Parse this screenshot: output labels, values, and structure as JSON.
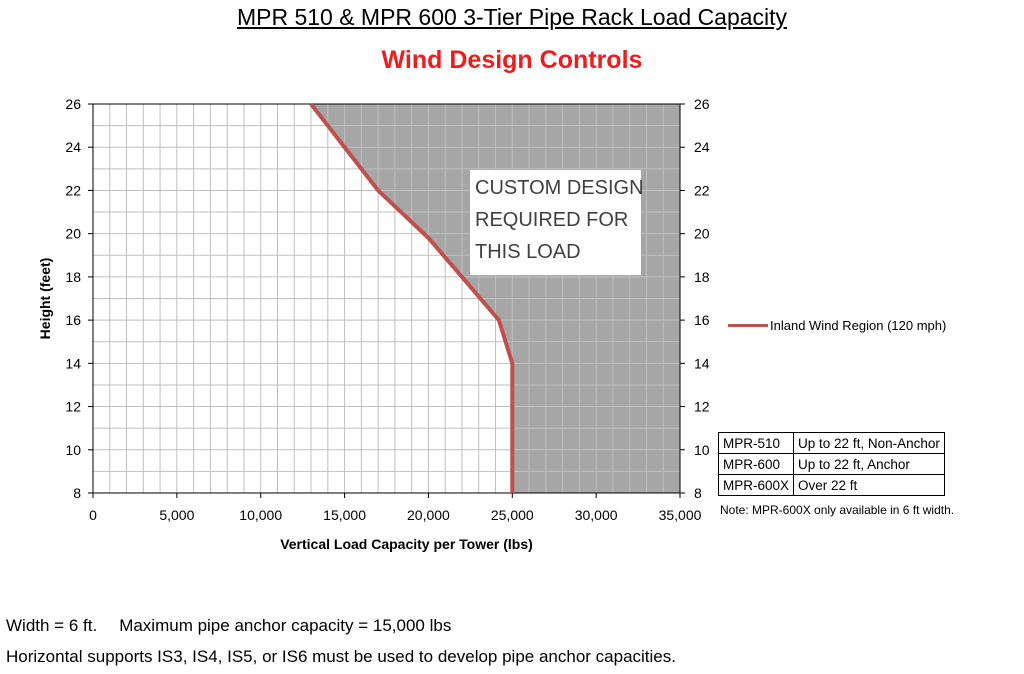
{
  "header": {
    "title": "MPR 510 & MPR 600  3-Tier Pipe Rack Load Capacity",
    "subtitle": "Wind Design Controls"
  },
  "chart_data": {
    "type": "line",
    "title": "MPR 510 & MPR 600  3-Tier Pipe Rack Load Capacity",
    "subtitle": "Wind Design Controls",
    "xlabel": "Vertical Load Capacity per Tower (lbs)",
    "ylabel": "Height (feet)",
    "xlim": [
      0,
      35000
    ],
    "ylim": [
      8,
      26
    ],
    "x_ticks": [
      "0",
      "5,000",
      "10,000",
      "15,000",
      "20,000",
      "25,000",
      "30,000",
      "35,000"
    ],
    "y_ticks": [
      "8",
      "10",
      "12",
      "14",
      "16",
      "18",
      "20",
      "22",
      "24",
      "26"
    ],
    "series": [
      {
        "name": "Inland Wind Region (120 mph)",
        "color": "#c0504d",
        "points": [
          {
            "x": 13000,
            "y": 26
          },
          {
            "x": 15000,
            "y": 24
          },
          {
            "x": 17000,
            "y": 22
          },
          {
            "x": 20000,
            "y": 19.8
          },
          {
            "x": 22000,
            "y": 18
          },
          {
            "x": 24200,
            "y": 16
          },
          {
            "x": 25000,
            "y": 14
          },
          {
            "x": 25000,
            "y": 8
          }
        ]
      }
    ],
    "shaded_region": {
      "color": "#a6a6a6",
      "description_side": "right of curve"
    },
    "annotation": [
      "CUSTOM DESIGN",
      "REQUIRED FOR",
      "THIS LOAD"
    ],
    "grid": true,
    "legend": "right"
  },
  "models_table": [
    {
      "model": "MPR-510",
      "desc": "Up to 22 ft, Non-Anchor"
    },
    {
      "model": "MPR-600",
      "desc": "Up to 22 ft, Anchor"
    },
    {
      "model": "MPR-600X",
      "desc": "Over 22 ft"
    }
  ],
  "note": "Note: MPR-600X only available in 6 ft width.",
  "footer": {
    "width": "Width = 6 ft.",
    "anchor_capacity": "Maximum pipe anchor capacity = 15,000 lbs",
    "supports": "Horizontal supports IS3, IS4, IS5, or IS6 must be used to develop pipe anchor capacities."
  }
}
